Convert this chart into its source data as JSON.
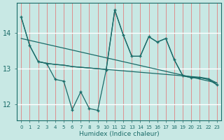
{
  "background_color": "#c8e8e4",
  "grid_h_color": "#ffffff",
  "grid_v_color": "#e08080",
  "line_color": "#1a6b68",
  "xlabel": "Humidex (Indice chaleur)",
  "ylim": [
    11.55,
    14.85
  ],
  "xlim": [
    -0.5,
    23.5
  ],
  "yticks": [
    12,
    13,
    14
  ],
  "xticks": [
    0,
    1,
    2,
    3,
    4,
    5,
    6,
    7,
    8,
    9,
    10,
    11,
    12,
    13,
    14,
    15,
    16,
    17,
    18,
    19,
    20,
    21,
    22,
    23
  ],
  "line1_x": [
    0,
    1,
    2,
    3,
    4,
    5,
    6,
    7,
    8,
    9,
    10,
    11,
    12,
    13,
    14,
    15,
    16,
    17,
    18,
    19,
    20,
    21,
    22,
    23
  ],
  "line1_y": [
    14.45,
    13.65,
    13.2,
    13.15,
    12.7,
    12.65,
    11.85,
    12.35,
    11.88,
    11.83,
    12.97,
    14.65,
    13.95,
    13.35,
    13.35,
    13.9,
    13.75,
    13.85,
    13.25,
    12.8,
    12.75,
    12.75,
    12.7,
    12.55
  ],
  "line2_x": [
    0,
    1,
    2,
    3,
    4,
    5,
    6,
    7,
    8,
    9,
    10,
    11,
    12,
    13,
    14,
    15,
    16,
    17,
    18,
    19,
    20,
    21,
    22,
    23
  ],
  "line2_y": [
    14.45,
    13.65,
    13.2,
    13.15,
    13.12,
    13.1,
    13.06,
    13.04,
    13.02,
    13.0,
    12.98,
    12.96,
    12.94,
    12.92,
    12.9,
    12.88,
    12.86,
    12.84,
    12.82,
    12.8,
    12.78,
    12.76,
    12.72,
    12.6
  ],
  "line3_x": [
    2,
    3,
    4,
    5,
    6,
    7,
    8,
    9,
    10,
    11,
    12,
    13,
    14,
    15,
    16,
    17,
    18,
    19,
    20,
    21,
    22,
    23
  ],
  "line3_y": [
    13.2,
    13.15,
    13.12,
    13.1,
    13.06,
    13.04,
    13.02,
    13.0,
    12.98,
    14.65,
    13.95,
    13.35,
    13.35,
    13.9,
    13.75,
    13.85,
    13.25,
    12.8,
    12.75,
    12.75,
    12.7,
    12.55
  ],
  "trend_x": [
    0,
    23
  ],
  "trend_y": [
    13.85,
    12.6
  ]
}
